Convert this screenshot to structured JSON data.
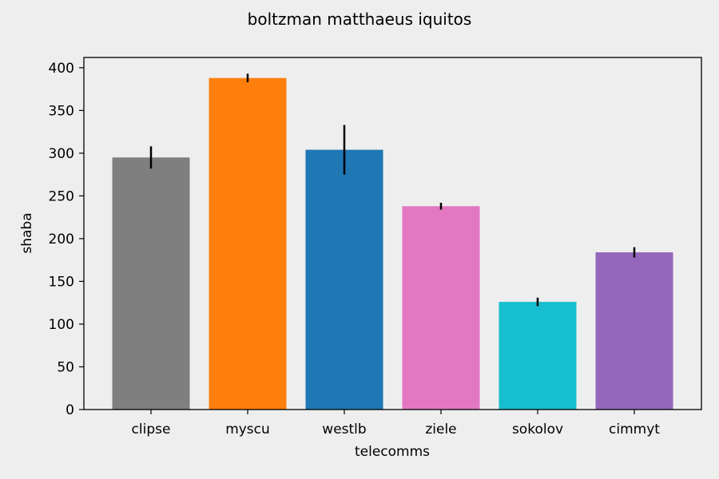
{
  "chart_data": {
    "type": "bar",
    "title": "boltzman matthaeus iquitos",
    "xlabel": "telecomms",
    "ylabel": "shaba",
    "categories": [
      "clipse",
      "myscu",
      "westlb",
      "ziele",
      "sokolov",
      "cimmyt"
    ],
    "values": [
      295,
      388,
      304,
      238,
      126,
      184
    ],
    "errors": [
      13,
      5,
      29,
      4,
      5,
      6
    ],
    "colors": [
      "#7f7f7f",
      "#ff7f0e",
      "#1f77b4",
      "#e377c2",
      "#17becf",
      "#9467bd"
    ],
    "ylim": [
      0,
      412
    ],
    "yticks": [
      0,
      50,
      100,
      150,
      200,
      250,
      300,
      350,
      400
    ],
    "grid": false,
    "legend": "none"
  }
}
